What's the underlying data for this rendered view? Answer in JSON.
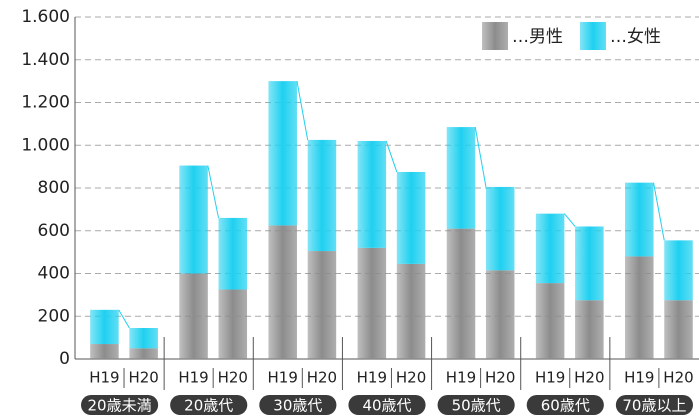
{
  "chart_data": {
    "type": "stacked-bar",
    "categories": [
      "H19",
      "H20",
      "H19",
      "H20",
      "H19",
      "H20",
      "H19",
      "H20",
      "H19",
      "H20",
      "H19",
      "H20",
      "H19",
      "H20"
    ],
    "groups": [
      "20歳未満",
      "20歳代",
      "30歳代",
      "40歳代",
      "50歳代",
      "60歳代",
      "70歳以上"
    ],
    "series": [
      {
        "name": "…男性",
        "color": "#8c8c8c",
        "values": [
          70,
          50,
          400,
          325,
          625,
          505,
          520,
          445,
          610,
          415,
          355,
          275,
          480,
          275
        ]
      },
      {
        "name": "…女性",
        "color": "#1fd0f0",
        "values": [
          160,
          95,
          505,
          335,
          675,
          520,
          500,
          430,
          475,
          390,
          325,
          345,
          345,
          280
        ]
      }
    ],
    "ylim": [
      0,
      1600
    ],
    "yticks": [
      0,
      200,
      400,
      600,
      800,
      {
        "value": 1000,
        "label": "1.000"
      },
      {
        "value": 1200,
        "label": "1.200"
      },
      {
        "value": 1400,
        "label": "1.400"
      },
      {
        "value": 1600,
        "label": "1.600"
      }
    ],
    "grid": true,
    "legend": "top-right"
  }
}
